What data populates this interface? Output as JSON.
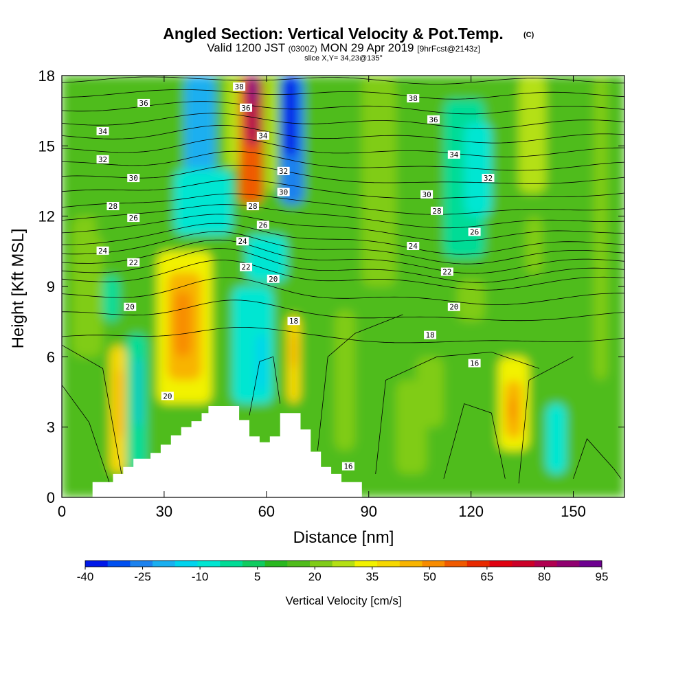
{
  "header": {
    "title_main": "Angled Section: Vertical Velocity & Pot.Temp.",
    "title_copy": "(C)",
    "valid_1": "Valid 1200 JST",
    "valid_2": "(0300Z)",
    "valid_3": "MON 29 Apr 2019",
    "valid_4": "[9hrFcst@2143z]",
    "slice": "slice X,Y= 34,23@135°"
  },
  "chart_data": {
    "type": "heatmap",
    "xlabel": "Distance [nm]",
    "ylabel": "Height [Kft MSL]",
    "xlim": [
      0,
      165
    ],
    "ylim": [
      0,
      18
    ],
    "xticks": [
      0,
      30,
      60,
      90,
      120,
      150
    ],
    "yticks": [
      0,
      3,
      6,
      9,
      12,
      15,
      18
    ],
    "grid": false,
    "colorbar": {
      "label": "Vertical Velocity [cm/s]",
      "min": -40,
      "max": 95,
      "step": 5,
      "tick_labels": [
        "-40",
        "-25",
        "-10",
        "5",
        "20",
        "35",
        "50",
        "65",
        "80",
        "95"
      ],
      "colors": [
        "#0018e8",
        "#0050f0",
        "#1c82ee",
        "#1aaff0",
        "#00d4ee",
        "#00e6d2",
        "#00dc96",
        "#10cc60",
        "#2ab820",
        "#50bc1c",
        "#80cc18",
        "#b4e014",
        "#f2f200",
        "#f6d800",
        "#f8b400",
        "#f88c00",
        "#f05a00",
        "#e82a00",
        "#e00010",
        "#cc0028",
        "#b00050",
        "#900070",
        "#6e0090"
      ]
    },
    "field_cells": [
      {
        "x": [
          0,
          165
        ],
        "y": [
          0,
          18
        ],
        "w": 7
      },
      {
        "x": [
          3,
          12
        ],
        "y": [
          6,
          12
        ],
        "w": 10
      },
      {
        "x": [
          10,
          25
        ],
        "y": [
          11,
          16
        ],
        "w": 8
      },
      {
        "x": [
          14,
          19
        ],
        "y": [
          1,
          6.5
        ],
        "w": 25
      },
      {
        "x": [
          16,
          18
        ],
        "y": [
          2.5,
          5.5
        ],
        "w": 32
      },
      {
        "x": [
          19,
          25
        ],
        "y": [
          1,
          7
        ],
        "w": -10
      },
      {
        "x": [
          22,
          23
        ],
        "y": [
          3,
          6
        ],
        "w": -22
      },
      {
        "x": [
          12,
          17
        ],
        "y": [
          7.5,
          9.5
        ],
        "w": -8
      },
      {
        "x": [
          28,
          44
        ],
        "y": [
          4,
          10.5
        ],
        "w": 22
      },
      {
        "x": [
          31,
          41
        ],
        "y": [
          5,
          9.6
        ],
        "w": 34
      },
      {
        "x": [
          33,
          38
        ],
        "y": [
          6,
          8.8
        ],
        "w": 38
      },
      {
        "x": [
          37,
          41
        ],
        "y": [
          15,
          18
        ],
        "w": -35
      },
      {
        "x": [
          36,
          45
        ],
        "y": [
          12.5,
          18
        ],
        "w": -22
      },
      {
        "x": [
          33,
          50
        ],
        "y": [
          11.2,
          14
        ],
        "w": -12
      },
      {
        "x": [
          48,
          52
        ],
        "y": [
          14,
          18
        ],
        "w": 18
      },
      {
        "x": [
          52,
          59
        ],
        "y": [
          12.5,
          18
        ],
        "w": 40
      },
      {
        "x": [
          54,
          58
        ],
        "y": [
          15,
          18
        ],
        "w": 60
      },
      {
        "x": [
          55,
          57
        ],
        "y": [
          16.8,
          18
        ],
        "w": 72
      },
      {
        "x": [
          60,
          63
        ],
        "y": [
          13,
          18
        ],
        "w": 15
      },
      {
        "x": [
          64,
          71
        ],
        "y": [
          12.5,
          18
        ],
        "w": -28
      },
      {
        "x": [
          65,
          69
        ],
        "y": [
          14.5,
          18
        ],
        "w": -38
      },
      {
        "x": [
          54,
          66
        ],
        "y": [
          9.2,
          11.2
        ],
        "w": -15
      },
      {
        "x": [
          50,
          62
        ],
        "y": [
          4,
          9
        ],
        "w": -12
      },
      {
        "x": [
          57,
          60
        ],
        "y": [
          4.5,
          7
        ],
        "w": -20
      },
      {
        "x": [
          66,
          70
        ],
        "y": [
          4,
          7.8
        ],
        "w": 25
      },
      {
        "x": [
          67,
          69
        ],
        "y": [
          5.5,
          7
        ],
        "w": 32
      },
      {
        "x": [
          80,
          86
        ],
        "y": [
          2,
          8
        ],
        "w": 10
      },
      {
        "x": [
          88,
          98
        ],
        "y": [
          9,
          18
        ],
        "w": 12
      },
      {
        "x": [
          98,
          107
        ],
        "y": [
          1,
          5
        ],
        "w": 14
      },
      {
        "x": [
          112,
          124
        ],
        "y": [
          10.2,
          17
        ],
        "w": -7
      },
      {
        "x": [
          118,
          126
        ],
        "y": [
          12,
          16
        ],
        "w": -12
      },
      {
        "x": [
          116,
          124
        ],
        "y": [
          7.5,
          9.3
        ],
        "w": 14
      },
      {
        "x": [
          128,
          137
        ],
        "y": [
          2,
          6
        ],
        "w": 20
      },
      {
        "x": [
          130,
          135
        ],
        "y": [
          2.5,
          5
        ],
        "w": 30
      },
      {
        "x": [
          131,
          133
        ],
        "y": [
          3.2,
          4.3
        ],
        "w": 36
      },
      {
        "x": [
          142,
          148
        ],
        "y": [
          1,
          4
        ],
        "w": -12
      },
      {
        "x": [
          134,
          142
        ],
        "y": [
          13,
          18
        ],
        "w": 18
      },
      {
        "x": [
          136,
          141
        ],
        "y": [
          9.5,
          12
        ],
        "w": 12
      },
      {
        "x": [
          104,
          112
        ],
        "y": [
          3,
          6
        ],
        "w": 12
      },
      {
        "x": [
          156,
          160
        ],
        "y": [
          5,
          18
        ],
        "w": 12
      }
    ],
    "terrain": [
      [
        9,
        0
      ],
      [
        9,
        0.65
      ],
      [
        15,
        0.65
      ],
      [
        15,
        1
      ],
      [
        18,
        1
      ],
      [
        18,
        1.3
      ],
      [
        21,
        1.3
      ],
      [
        21,
        1.65
      ],
      [
        26,
        1.65
      ],
      [
        26,
        1.9
      ],
      [
        29,
        1.9
      ],
      [
        29,
        2.25
      ],
      [
        32,
        2.25
      ],
      [
        32,
        2.65
      ],
      [
        35,
        2.65
      ],
      [
        35,
        3
      ],
      [
        38,
        3
      ],
      [
        38,
        3.25
      ],
      [
        41,
        3.25
      ],
      [
        41,
        3.6
      ],
      [
        43,
        3.6
      ],
      [
        43,
        3.9
      ],
      [
        52,
        3.9
      ],
      [
        52,
        3.3
      ],
      [
        55,
        3.3
      ],
      [
        55,
        2.6
      ],
      [
        58,
        2.6
      ],
      [
        58,
        2.35
      ],
      [
        61,
        2.35
      ],
      [
        61,
        2.6
      ],
      [
        64,
        2.6
      ],
      [
        64,
        3.6
      ],
      [
        70,
        3.6
      ],
      [
        70,
        2.9
      ],
      [
        73,
        2.9
      ],
      [
        73,
        1.95
      ],
      [
        76,
        1.95
      ],
      [
        76,
        1.3
      ],
      [
        79,
        1.3
      ],
      [
        79,
        1
      ],
      [
        82,
        1
      ],
      [
        82,
        0.65
      ],
      [
        88,
        0.65
      ],
      [
        88,
        0
      ]
    ],
    "isentropes": [
      {
        "y": 17.8,
        "amp": 0.1,
        "label": "38",
        "lx": 103,
        "ly": 17.0
      },
      {
        "y": 17.2,
        "amp": 0.15,
        "label": "36",
        "lx": 109,
        "ly": 16.1
      },
      {
        "y": 16.6,
        "amp": 0.2
      },
      {
        "y": 16.0,
        "amp": 0.25,
        "label": "34",
        "lx": 115,
        "ly": 14.6
      },
      {
        "y": 15.4,
        "amp": 0.3
      },
      {
        "y": 14.8,
        "amp": 0.35,
        "label": "32",
        "lx": 125,
        "ly": 13.6
      },
      {
        "y": 14.2,
        "amp": 0.4
      },
      {
        "y": 13.6,
        "amp": 0.45,
        "label": "30",
        "lx": 107,
        "ly": 12.9
      },
      {
        "y": 13.0,
        "amp": 0.5
      },
      {
        "y": 12.4,
        "amp": 0.55,
        "label": "28",
        "lx": 110,
        "ly": 12.2
      },
      {
        "y": 11.9,
        "amp": 0.6
      },
      {
        "y": 11.4,
        "amp": 0.65,
        "label": "26",
        "lx": 121,
        "ly": 11.3
      },
      {
        "y": 10.9,
        "amp": 0.7
      },
      {
        "y": 10.5,
        "amp": 0.7,
        "label": "24",
        "lx": 103,
        "ly": 10.7
      },
      {
        "y": 10.1,
        "amp": 0.7
      },
      {
        "y": 9.7,
        "amp": 0.7,
        "label": "22",
        "lx": 113,
        "ly": 9.6
      },
      {
        "y": 9.3,
        "amp": 0.6
      },
      {
        "y": 8.6,
        "amp": 0.55,
        "label": "20",
        "lx": 115,
        "ly": 8.1
      },
      {
        "y": 7.8,
        "amp": 0.45,
        "label": "18",
        "lx": 108,
        "ly": 6.9
      },
      {
        "y": 6.8,
        "amp": 0.4,
        "label": "16",
        "lx": 121,
        "ly": 5.7
      }
    ],
    "contour_labels": [
      {
        "text": "36",
        "x": 24,
        "y": 16.8
      },
      {
        "text": "34",
        "x": 12,
        "y": 15.6
      },
      {
        "text": "32",
        "x": 12,
        "y": 14.4
      },
      {
        "text": "30",
        "x": 21,
        "y": 13.6
      },
      {
        "text": "28",
        "x": 15,
        "y": 12.4
      },
      {
        "text": "26",
        "x": 21,
        "y": 11.9
      },
      {
        "text": "24",
        "x": 12,
        "y": 10.5
      },
      {
        "text": "22",
        "x": 21,
        "y": 10.0
      },
      {
        "text": "20",
        "x": 20,
        "y": 8.1
      },
      {
        "text": "38",
        "x": 52,
        "y": 17.5
      },
      {
        "text": "36",
        "x": 54,
        "y": 16.6
      },
      {
        "text": "34",
        "x": 59,
        "y": 15.4
      },
      {
        "text": "32",
        "x": 65,
        "y": 13.9
      },
      {
        "text": "30",
        "x": 65,
        "y": 13.0
      },
      {
        "text": "28",
        "x": 56,
        "y": 12.4
      },
      {
        "text": "26",
        "x": 59,
        "y": 11.6
      },
      {
        "text": "24",
        "x": 53,
        "y": 10.9
      },
      {
        "text": "22",
        "x": 54,
        "y": 9.8
      },
      {
        "text": "20",
        "x": 62,
        "y": 9.3
      },
      {
        "text": "18",
        "x": 68,
        "y": 7.5
      },
      {
        "text": "20",
        "x": 31,
        "y": 4.3
      },
      {
        "text": "16",
        "x": 84,
        "y": 1.3
      }
    ]
  }
}
